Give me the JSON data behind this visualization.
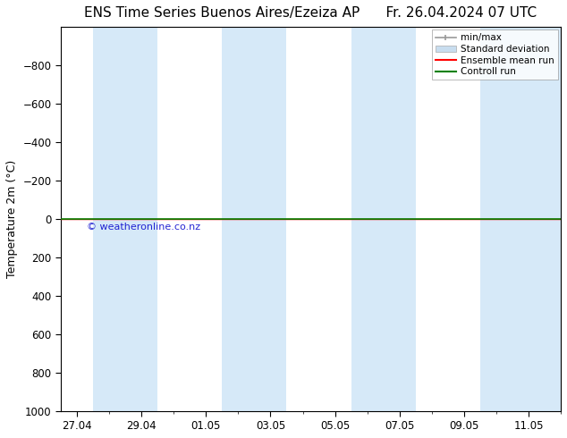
{
  "title_left": "ENS Time Series Buenos Aires/Ezeiza AP",
  "title_right": "Fr. 26.04.2024 07 UTC",
  "ylabel": "Temperature 2m (°C)",
  "watermark": "© weatheronline.co.nz",
  "ylim_bottom": 1000,
  "ylim_top": -1000,
  "yticks": [
    -800,
    -600,
    -400,
    -200,
    0,
    200,
    400,
    600,
    800,
    1000
  ],
  "x_tick_labels": [
    "27.04",
    "29.04",
    "01.05",
    "03.05",
    "05.05",
    "07.05",
    "09.05",
    "11.05"
  ],
  "x_tick_positions": [
    0,
    2,
    4,
    6,
    8,
    10,
    12,
    14
  ],
  "shaded_band_color": "#d6e9f8",
  "shaded_columns": [
    [
      0.5,
      2.5
    ],
    [
      4.5,
      6.5
    ],
    [
      8.5,
      10.5
    ],
    [
      12.5,
      14.5
    ]
  ],
  "last_shaded": [
    14,
    15
  ],
  "control_run_y": 0,
  "control_run_color": "#008000",
  "ensemble_mean_color": "#ff0000",
  "minmax_color": "#999999",
  "stddev_color": "#c8ddef",
  "legend_labels": [
    "min/max",
    "Standard deviation",
    "Ensemble mean run",
    "Controll run"
  ],
  "bg_color": "#ffffff",
  "ax_bg_color": "#ffffff",
  "title_fontsize": 11,
  "label_fontsize": 9,
  "tick_fontsize": 8.5,
  "x_min": -0.5,
  "x_max": 15
}
